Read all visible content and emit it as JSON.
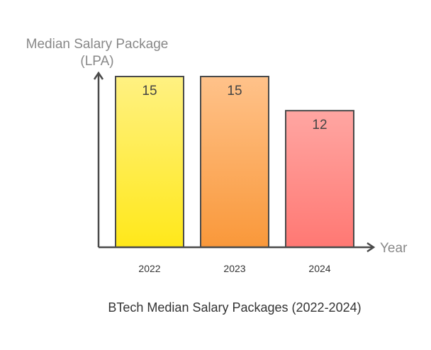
{
  "chart_data": {
    "type": "bar",
    "title": "BTech Median Salary Packages (2022-2024)",
    "ylabel_lines": [
      "Median Salary Package",
      "(LPA)"
    ],
    "xlabel": "Year",
    "categories": [
      "2022",
      "2023",
      "2024"
    ],
    "values": [
      15,
      15,
      12
    ],
    "ylim": [
      0,
      15
    ],
    "grid": false,
    "colors": [
      {
        "top": "#fff182",
        "bottom": "#ffe81a"
      },
      {
        "top": "#ffc28a",
        "bottom": "#f9983a"
      },
      {
        "top": "#ffa6a2",
        "bottom": "#ff7873"
      }
    ],
    "axis_color": "#4a4a4a"
  }
}
